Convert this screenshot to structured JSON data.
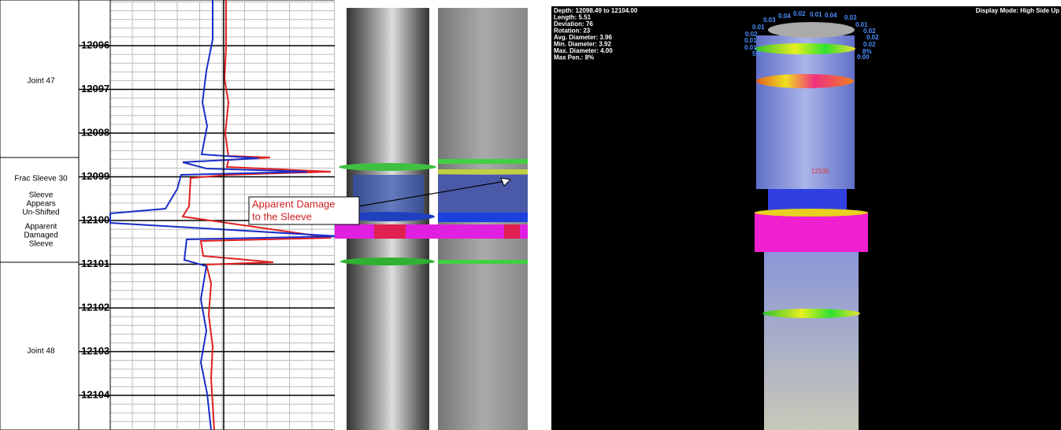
{
  "zones": {
    "joint_47": "Joint 47",
    "frac_sleeve": [
      "Frac Sleeve 30",
      "Sleeve",
      "Appears",
      "Un-Shifted",
      "Apparent",
      "Damaged",
      "Sleeve"
    ],
    "joint_48": "Joint 48"
  },
  "depths": [
    "12096",
    "12097",
    "12098",
    "12099",
    "12100",
    "12101",
    "12102",
    "12103",
    "12104"
  ],
  "annotation": [
    "Apparent Damage",
    "to the Sleeve"
  ],
  "viewer": {
    "info": [
      "Depth: 12098.49 to 12104.00",
      "Length: 5.51",
      "Deviation: 76",
      "Rotation: 23",
      "Avg. Diameter: 3.96",
      "Min. Diameter: 3.92",
      "Max. Diameter: 4.00",
      "Max Pen.: 8%"
    ],
    "display_mode": "Display Mode: High Side Up",
    "ring_labels": [
      "0.03",
      "0.04",
      "0.02",
      "0.01",
      "0.04",
      "0.03",
      "0.01",
      "0.01",
      "0.02",
      "0.02",
      "0.02",
      "0.01",
      "0.02",
      "0.01",
      "5%",
      "8%",
      "0.00"
    ],
    "depth_marker": "12100"
  }
}
